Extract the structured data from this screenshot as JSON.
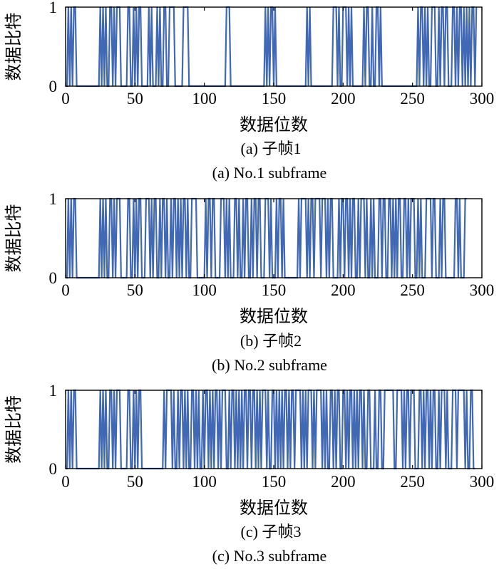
{
  "colors": {
    "series": "#4068b4",
    "axes": "#000000",
    "background": "#ffffff"
  },
  "chart_data": [
    {
      "type": "line",
      "xlabel": "数据位数",
      "ylabel": "数据比特",
      "xlim": [
        0,
        300
      ],
      "ylim": [
        0,
        1
      ],
      "xticks": [
        "0",
        "50",
        "100",
        "150",
        "200",
        "250",
        "300"
      ],
      "yticks": [
        "0",
        "1"
      ],
      "caption_cn": "(a) 子帧1",
      "caption_en": "(a) No.1 subframe",
      "grid": false,
      "series": [
        {
          "values": [
            0,
            0,
            1,
            0,
            1,
            0,
            1,
            1,
            0,
            0,
            0,
            0,
            0,
            0,
            0,
            0,
            0,
            0,
            0,
            0,
            0,
            0,
            0,
            0,
            0,
            1,
            0,
            1,
            0,
            1,
            0,
            0,
            1,
            1,
            0,
            1,
            0,
            1,
            1,
            1,
            0,
            0,
            0,
            0,
            0,
            1,
            1,
            0,
            0,
            1,
            0,
            1,
            0,
            1,
            1,
            0,
            0,
            0,
            0,
            0,
            1,
            0,
            1,
            0,
            0,
            0,
            1,
            0,
            1,
            0,
            0,
            1,
            1,
            0,
            0,
            1,
            1,
            1,
            1,
            0,
            0,
            0,
            0,
            0,
            0,
            1,
            1,
            1,
            1,
            0,
            0,
            0,
            0,
            0,
            0,
            0,
            0,
            0,
            0,
            0,
            0,
            0,
            0,
            0,
            0,
            0,
            0,
            0,
            0,
            0,
            0,
            0,
            0,
            0,
            0,
            0,
            1,
            1,
            1,
            0,
            0,
            0,
            0,
            0,
            0,
            0,
            0,
            0,
            0,
            0,
            0,
            0,
            0,
            0,
            0,
            0,
            0,
            0,
            0,
            0,
            0,
            0,
            0,
            0,
            1,
            0,
            1,
            0,
            1,
            1,
            0,
            1,
            0,
            0,
            0,
            0,
            0,
            0,
            0,
            0,
            0,
            0,
            0,
            0,
            0,
            0,
            0,
            0,
            0,
            0,
            0,
            0,
            0,
            0,
            1,
            0,
            1,
            0,
            0,
            0,
            0,
            0,
            0,
            0,
            0,
            0,
            0,
            0,
            0,
            0,
            0,
            0,
            0,
            1,
            1,
            1,
            0,
            1,
            0,
            0,
            1,
            1,
            1,
            0,
            1,
            0,
            1,
            0,
            0,
            0,
            0,
            0,
            0,
            0,
            0,
            1,
            0,
            1,
            1,
            0,
            0,
            1,
            0,
            0,
            1,
            1,
            0,
            1,
            0,
            0,
            0,
            0,
            0,
            0,
            0,
            0,
            0,
            0,
            0,
            0,
            0,
            0,
            0,
            0,
            0,
            0,
            0,
            0,
            0,
            0,
            0,
            0,
            0,
            0,
            1,
            0,
            1,
            1,
            0,
            1,
            0,
            1,
            0,
            0,
            1,
            1,
            1,
            0,
            0,
            1,
            0,
            1,
            1,
            0,
            1,
            1,
            0,
            0,
            0,
            1,
            1,
            0,
            1,
            0,
            1,
            1,
            0,
            1,
            0,
            1,
            0,
            1,
            0,
            1,
            1,
            0,
            1
          ]
        }
      ]
    },
    {
      "type": "line",
      "xlabel": "数据位数",
      "ylabel": "数据比特",
      "xlim": [
        0,
        300
      ],
      "ylim": [
        0,
        1
      ],
      "xticks": [
        "0",
        "50",
        "100",
        "150",
        "200",
        "250",
        "300"
      ],
      "yticks": [
        "0",
        "1"
      ],
      "caption_cn": "(b) 子帧2",
      "caption_en": "(b) No.2 subframe",
      "grid": false,
      "series": [
        {
          "values": [
            0,
            0,
            1,
            0,
            1,
            0,
            1,
            1,
            0,
            0,
            0,
            0,
            0,
            0,
            0,
            0,
            0,
            0,
            0,
            0,
            0,
            0,
            0,
            0,
            0,
            1,
            0,
            1,
            0,
            1,
            0,
            0,
            1,
            1,
            0,
            1,
            0,
            1,
            1,
            1,
            0,
            0,
            0,
            0,
            0,
            1,
            1,
            0,
            0,
            1,
            0,
            1,
            0,
            1,
            1,
            0,
            0,
            0,
            1,
            1,
            1,
            0,
            1,
            0,
            1,
            1,
            0,
            0,
            1,
            0,
            1,
            1,
            0,
            1,
            0,
            0,
            1,
            0,
            1,
            1,
            0,
            1,
            0,
            1,
            0,
            1,
            1,
            0,
            1,
            0,
            0,
            1,
            1,
            1,
            1,
            0,
            0,
            0,
            0,
            0,
            0,
            1,
            0,
            1,
            1,
            0,
            1,
            1,
            0,
            0,
            0,
            0,
            1,
            1,
            1,
            0,
            1,
            0,
            1,
            0,
            0,
            0,
            1,
            1,
            0,
            1,
            0,
            0,
            1,
            0,
            1,
            1,
            0,
            0,
            1,
            0,
            1,
            1,
            0,
            1,
            1,
            0,
            0,
            0,
            1,
            1,
            1,
            0,
            1,
            0,
            0,
            0,
            1,
            0,
            1,
            1,
            0,
            1,
            0,
            0,
            0,
            0,
            0,
            0,
            0,
            0,
            0,
            0,
            1,
            0,
            1,
            1,
            1,
            1,
            0,
            1,
            0,
            1,
            1,
            0,
            1,
            1,
            1,
            1,
            0,
            1,
            1,
            1,
            0,
            1,
            0,
            1,
            1,
            0,
            0,
            0,
            0,
            1,
            0,
            1,
            1,
            0,
            1,
            1,
            0,
            1,
            0,
            1,
            1,
            0,
            0,
            1,
            0,
            1,
            1,
            1,
            0,
            1,
            0,
            0,
            1,
            0,
            1,
            0,
            0,
            0,
            1,
            1,
            0,
            1,
            1,
            0,
            0,
            1,
            1,
            0,
            1,
            0,
            1,
            0,
            1,
            1,
            0,
            0,
            1,
            1,
            0,
            1,
            0,
            1,
            1,
            1,
            0,
            0,
            1,
            0,
            1,
            0,
            0,
            0,
            1,
            1,
            1,
            1,
            0,
            1,
            1,
            0,
            0,
            0,
            1,
            0,
            1,
            1,
            0,
            0,
            0,
            0,
            0,
            0,
            0,
            1,
            1,
            0,
            1,
            0,
            0,
            0,
            1,
            1
          ]
        }
      ]
    },
    {
      "type": "line",
      "xlabel": "数据位数",
      "ylabel": "数据比特",
      "xlim": [
        0,
        300
      ],
      "ylim": [
        0,
        1
      ],
      "xticks": [
        "0",
        "50",
        "100",
        "150",
        "200",
        "250",
        "300"
      ],
      "yticks": [
        "0",
        "1"
      ],
      "caption_cn": "(c) 子帧3",
      "caption_en": "(c) No.3 subframe",
      "grid": false,
      "series": [
        {
          "values": [
            0,
            0,
            1,
            0,
            1,
            0,
            1,
            1,
            0,
            0,
            0,
            0,
            0,
            0,
            0,
            0,
            0,
            0,
            0,
            0,
            0,
            0,
            0,
            0,
            0,
            1,
            0,
            1,
            0,
            1,
            0,
            0,
            1,
            1,
            0,
            1,
            0,
            1,
            1,
            1,
            0,
            0,
            0,
            0,
            0,
            1,
            1,
            0,
            0,
            1,
            0,
            1,
            0,
            1,
            1,
            0,
            0,
            0,
            0,
            0,
            0,
            0,
            0,
            0,
            0,
            0,
            0,
            0,
            0,
            0,
            0,
            1,
            0,
            1,
            1,
            1,
            1,
            0,
            1,
            0,
            0,
            1,
            0,
            1,
            1,
            0,
            1,
            0,
            1,
            0,
            0,
            1,
            1,
            0,
            1,
            0,
            1,
            0,
            0,
            1,
            0,
            1,
            1,
            0,
            1,
            0,
            1,
            0,
            1,
            1,
            0,
            1,
            0,
            1,
            1,
            1,
            0,
            0,
            1,
            0,
            1,
            1,
            0,
            1,
            0,
            1,
            0,
            1,
            0,
            1,
            1,
            0,
            1,
            1,
            0,
            1,
            1,
            0,
            1,
            0,
            1,
            0,
            1,
            1,
            1,
            0,
            1,
            0,
            0,
            1,
            1,
            0,
            1,
            0,
            1,
            0,
            1,
            0,
            1,
            1,
            0,
            1,
            0,
            1,
            1,
            0,
            1,
            1,
            1,
            1,
            0,
            1,
            0,
            1,
            0,
            1,
            1,
            1,
            0,
            1,
            0,
            1,
            1,
            1,
            1,
            0,
            1,
            0,
            1,
            0,
            0,
            1,
            1,
            0,
            1,
            0,
            1,
            1,
            0,
            0,
            1,
            1,
            0,
            1,
            0,
            1,
            1,
            0,
            1,
            0,
            1,
            0,
            1,
            1,
            0,
            1,
            0,
            0,
            1,
            1,
            0,
            0,
            0,
            1,
            0,
            0,
            1,
            1,
            0,
            0,
            1,
            1,
            1,
            1,
            1,
            1,
            1,
            0,
            0,
            1,
            1,
            1,
            1,
            0,
            1,
            0,
            1,
            1,
            0,
            1,
            1,
            1,
            0,
            0,
            0,
            1,
            1,
            0,
            1,
            0,
            1,
            1,
            0,
            1,
            0,
            1,
            1,
            0,
            0,
            1,
            0,
            1,
            1,
            1,
            0,
            1,
            0,
            0,
            0,
            1,
            1,
            1,
            0,
            1,
            1,
            1,
            1,
            1,
            0,
            1,
            0,
            0,
            1,
            1,
            0,
            0
          ]
        }
      ]
    }
  ]
}
